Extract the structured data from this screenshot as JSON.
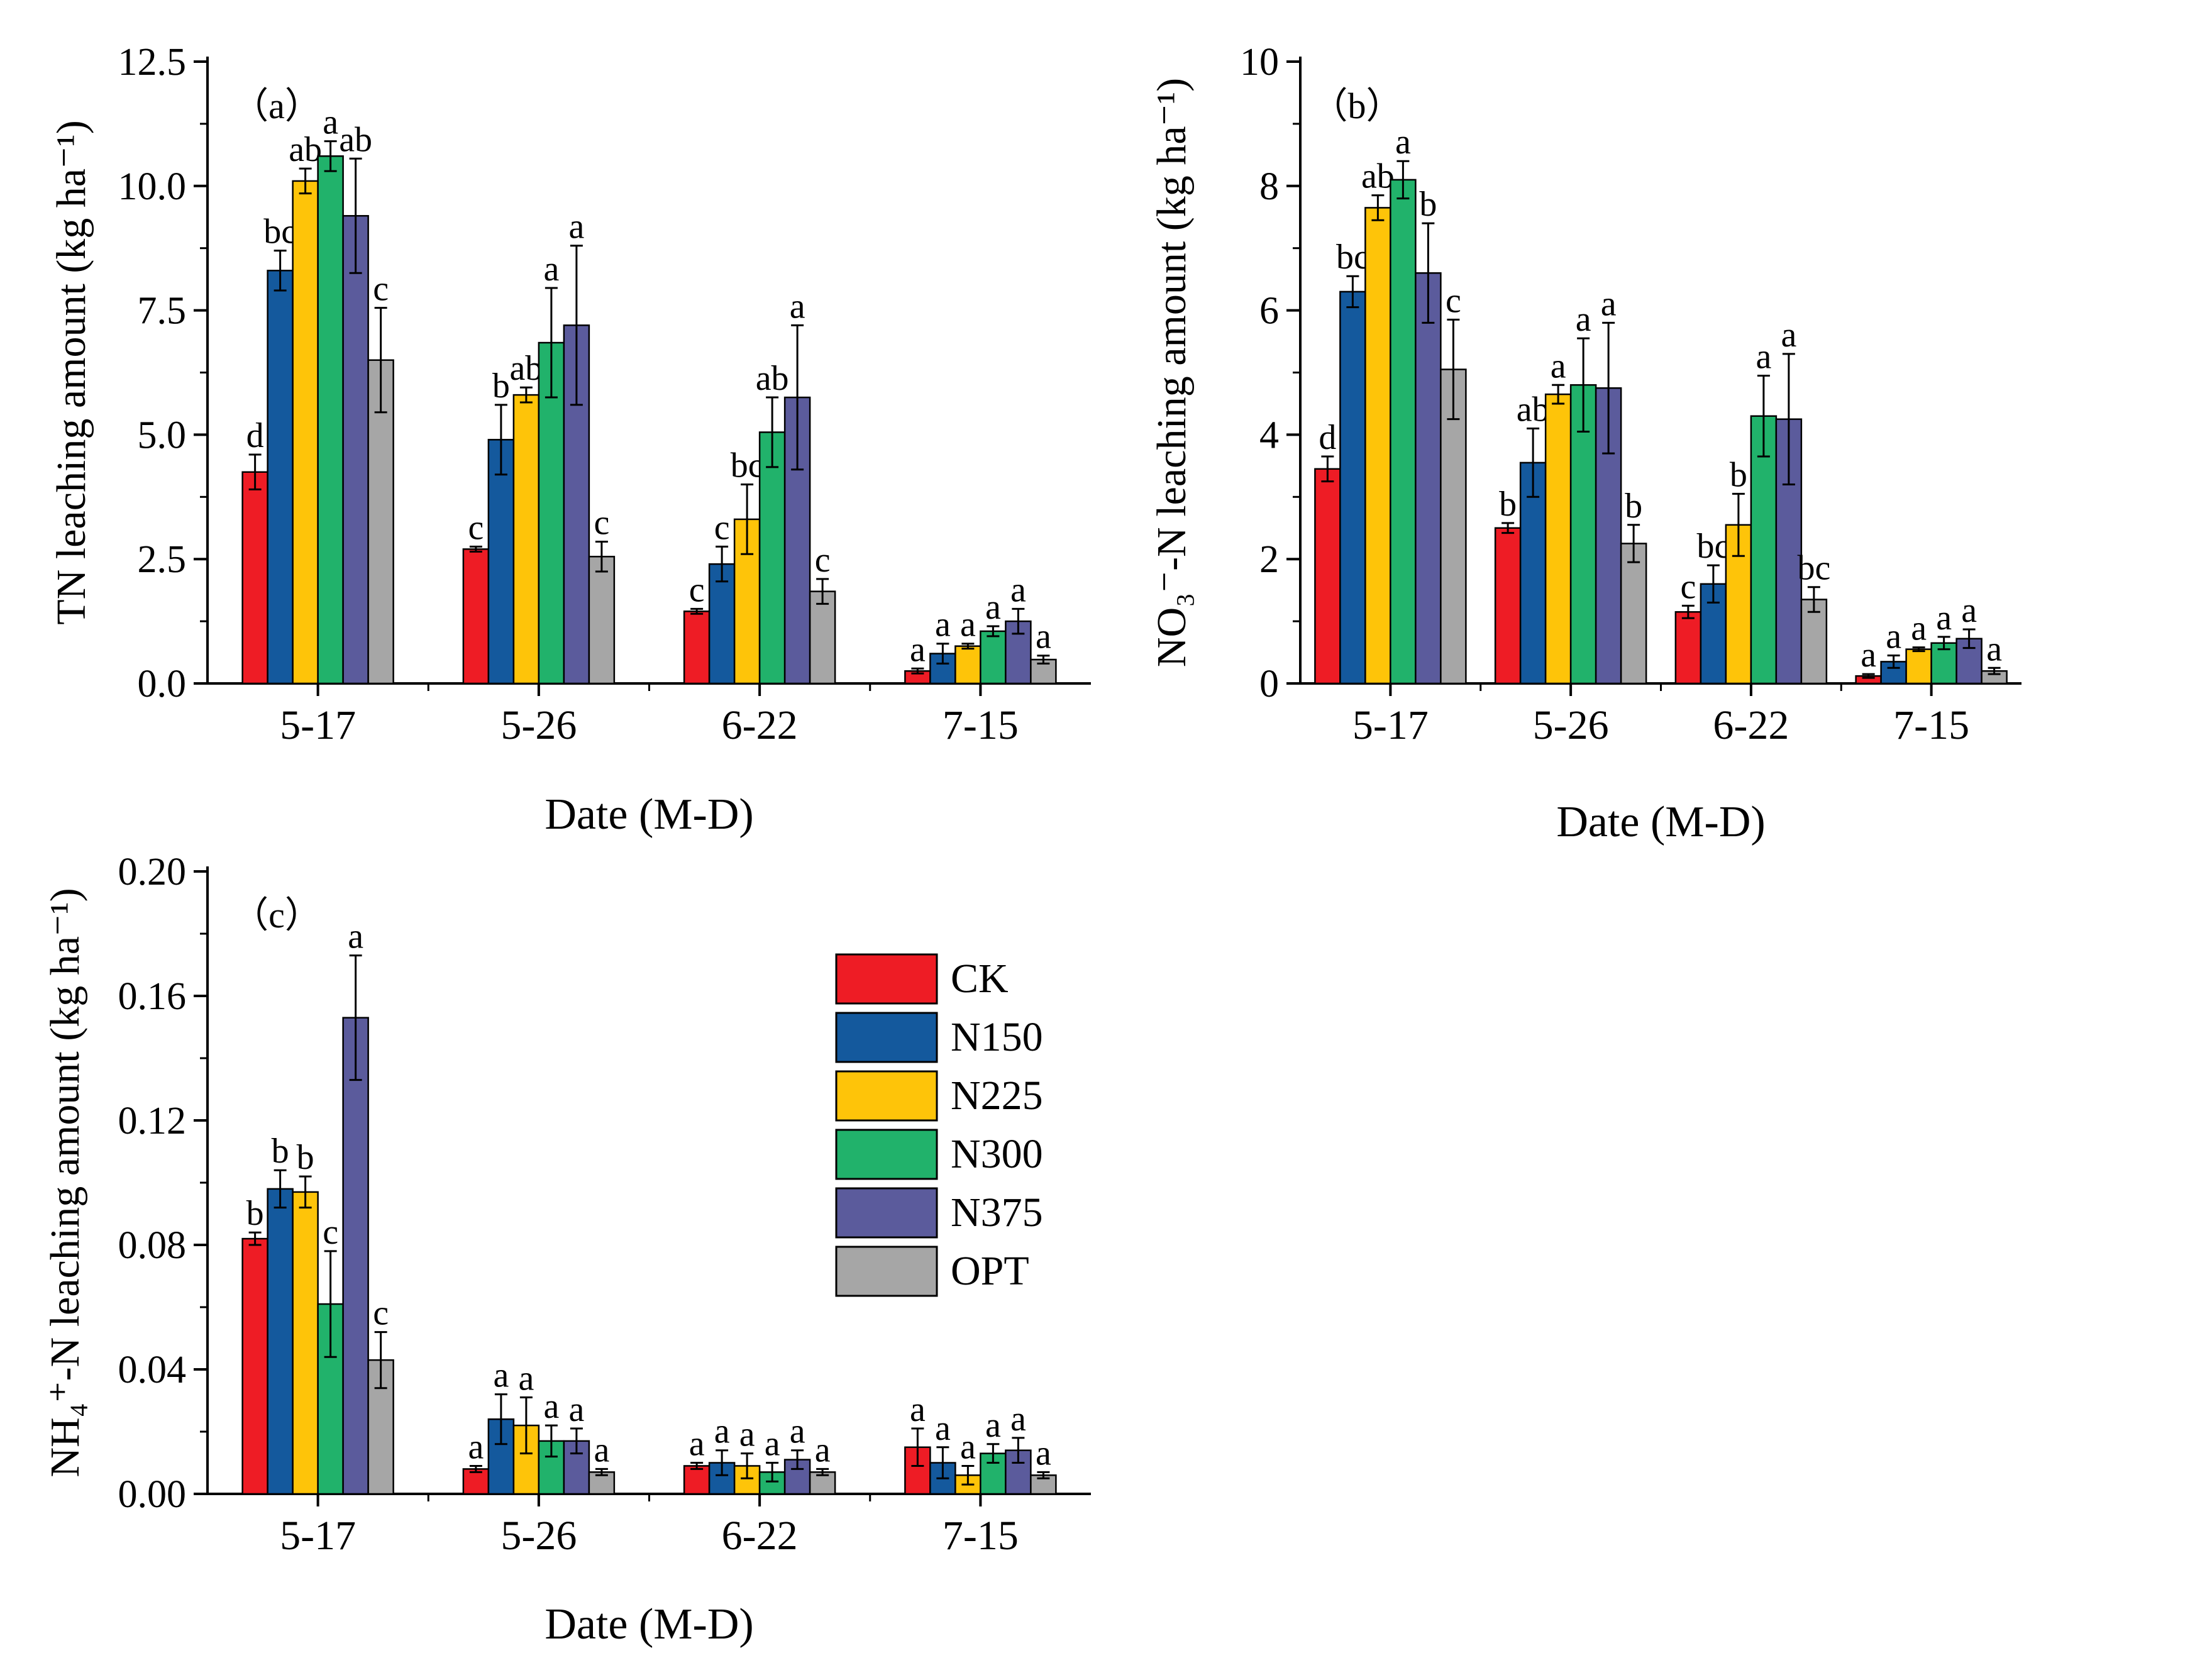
{
  "colors": {
    "CK": "#ee1c25",
    "N150": "#14599d",
    "N225": "#fec409",
    "N300": "#21b26b",
    "N375": "#5b5b9c",
    "OPT": "#a6a6a6"
  },
  "legend": [
    "CK",
    "N150",
    "N225",
    "N300",
    "N375",
    "OPT"
  ],
  "chart_data": [
    {
      "type": "bar",
      "panel_label": "（a）",
      "xlabel": "Date (M-D)",
      "ylabel": "TN leaching amount (kg ha⁻¹)",
      "ylim": [
        0,
        12.5
      ],
      "yticks": [
        "0.0",
        "2.5",
        "5.0",
        "7.5",
        "10.0",
        "12.5"
      ],
      "categories": [
        "5-17",
        "5-26",
        "6-22",
        "7-15"
      ],
      "series": [
        {
          "name": "CK",
          "values": [
            4.25,
            2.7,
            1.45,
            0.25
          ],
          "errors": [
            0.35,
            0.05,
            0.05,
            0.05
          ],
          "sig": [
            "d",
            "c",
            "c",
            "a"
          ]
        },
        {
          "name": "N150",
          "values": [
            8.3,
            4.9,
            2.4,
            0.6
          ],
          "errors": [
            0.4,
            0.7,
            0.35,
            0.2
          ],
          "sig": [
            "bc",
            "b",
            "c",
            "a"
          ]
        },
        {
          "name": "N225",
          "values": [
            10.1,
            5.8,
            3.3,
            0.75
          ],
          "errors": [
            0.25,
            0.15,
            0.7,
            0.05
          ],
          "sig": [
            "ab",
            "ab",
            "bc",
            "a"
          ]
        },
        {
          "name": "N300",
          "values": [
            10.6,
            6.85,
            5.05,
            1.05
          ],
          "errors": [
            0.3,
            1.1,
            0.7,
            0.1
          ],
          "sig": [
            "a",
            "a",
            "ab",
            "a"
          ]
        },
        {
          "name": "N375",
          "values": [
            9.4,
            7.2,
            5.75,
            1.25
          ],
          "errors": [
            1.15,
            1.6,
            1.45,
            0.25
          ],
          "sig": [
            "ab",
            "a",
            "a",
            "a"
          ]
        },
        {
          "name": "OPT",
          "values": [
            6.5,
            2.55,
            1.85,
            0.48
          ],
          "errors": [
            1.05,
            0.3,
            0.25,
            0.08
          ],
          "sig": [
            "c",
            "c",
            "c",
            "a"
          ]
        }
      ]
    },
    {
      "type": "bar",
      "panel_label": "（b）",
      "xlabel": "Date (M-D)",
      "ylabel": "NO₃⁻-N leaching amount (kg ha⁻¹)",
      "ylim": [
        0,
        10
      ],
      "yticks": [
        "0",
        "2",
        "4",
        "6",
        "8",
        "10"
      ],
      "categories": [
        "5-17",
        "5-26",
        "6-22",
        "7-15"
      ],
      "series": [
        {
          "name": "CK",
          "values": [
            3.45,
            2.5,
            1.15,
            0.12
          ],
          "errors": [
            0.2,
            0.08,
            0.1,
            0.03
          ],
          "sig": [
            "d",
            "b",
            "c",
            "a"
          ]
        },
        {
          "name": "N150",
          "values": [
            6.3,
            3.55,
            1.6,
            0.35
          ],
          "errors": [
            0.25,
            0.55,
            0.3,
            0.1
          ],
          "sig": [
            "bc",
            "ab",
            "bc",
            "a"
          ]
        },
        {
          "name": "N225",
          "values": [
            7.65,
            4.65,
            2.55,
            0.55
          ],
          "errors": [
            0.2,
            0.15,
            0.5,
            0.03
          ],
          "sig": [
            "ab",
            "a",
            "b",
            "a"
          ]
        },
        {
          "name": "N300",
          "values": [
            8.1,
            4.8,
            4.3,
            0.65
          ],
          "errors": [
            0.3,
            0.75,
            0.65,
            0.1
          ],
          "sig": [
            "a",
            "a",
            "a",
            "a"
          ]
        },
        {
          "name": "N375",
          "values": [
            6.6,
            4.75,
            4.25,
            0.72
          ],
          "errors": [
            0.8,
            1.05,
            1.05,
            0.15
          ],
          "sig": [
            "b",
            "a",
            "a",
            "a"
          ]
        },
        {
          "name": "OPT",
          "values": [
            5.05,
            2.25,
            1.35,
            0.2
          ],
          "errors": [
            0.8,
            0.3,
            0.2,
            0.05
          ],
          "sig": [
            "c",
            "b",
            "bc",
            "a"
          ]
        }
      ]
    },
    {
      "type": "bar",
      "panel_label": "（c）",
      "xlabel": "Date (M-D)",
      "ylabel": "NH₄⁺-N leaching amount (kg ha⁻¹)",
      "ylim": [
        0,
        0.2
      ],
      "yticks": [
        "0.00",
        "0.04",
        "0.08",
        "0.12",
        "0.16",
        "0.20"
      ],
      "categories": [
        "5-17",
        "5-26",
        "6-22",
        "7-15"
      ],
      "series": [
        {
          "name": "CK",
          "values": [
            0.082,
            0.008,
            0.009,
            0.015
          ],
          "errors": [
            0.002,
            0.001,
            0.001,
            0.006
          ],
          "sig": [
            "b",
            "a",
            "a",
            "a"
          ]
        },
        {
          "name": "N150",
          "values": [
            0.098,
            0.024,
            0.01,
            0.01
          ],
          "errors": [
            0.006,
            0.008,
            0.004,
            0.005
          ],
          "sig": [
            "b",
            "a",
            "a",
            "a"
          ]
        },
        {
          "name": "N225",
          "values": [
            0.097,
            0.022,
            0.009,
            0.006
          ],
          "errors": [
            0.005,
            0.009,
            0.004,
            0.003
          ],
          "sig": [
            "b",
            "a",
            "a",
            "a"
          ]
        },
        {
          "name": "N300",
          "values": [
            0.061,
            0.017,
            0.007,
            0.013
          ],
          "errors": [
            0.017,
            0.005,
            0.003,
            0.003
          ],
          "sig": [
            "c",
            "a",
            "a",
            "a"
          ]
        },
        {
          "name": "N375",
          "values": [
            0.153,
            0.017,
            0.011,
            0.014
          ],
          "errors": [
            0.02,
            0.004,
            0.003,
            0.004
          ],
          "sig": [
            "a",
            "a",
            "a",
            "a"
          ]
        },
        {
          "name": "OPT",
          "values": [
            0.043,
            0.007,
            0.007,
            0.006
          ],
          "errors": [
            0.009,
            0.001,
            0.001,
            0.001
          ],
          "sig": [
            "c",
            "a",
            "a",
            "a"
          ]
        }
      ]
    }
  ]
}
